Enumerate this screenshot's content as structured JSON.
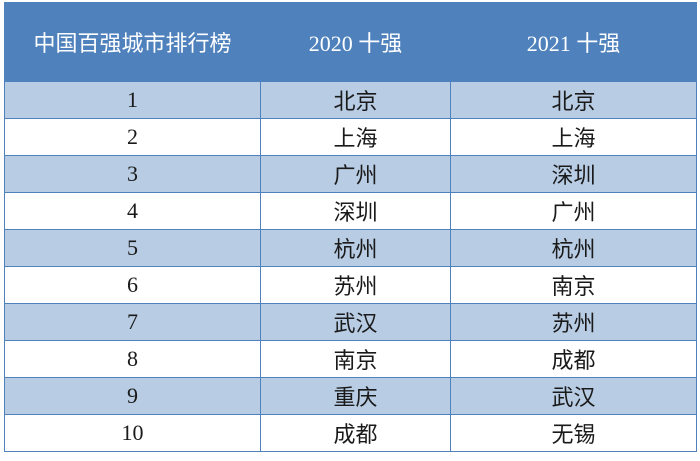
{
  "table": {
    "header": [
      "中国百强城市排行榜",
      "2020 十强",
      "2021 十强"
    ],
    "rows": [
      [
        1,
        "北京",
        "北京"
      ],
      [
        2,
        "上海",
        "上海"
      ],
      [
        3,
        "广州",
        "深圳"
      ],
      [
        4,
        "深圳",
        "广州"
      ],
      [
        5,
        "杭州",
        "杭州"
      ],
      [
        6,
        "苏州",
        "南京"
      ],
      [
        7,
        "武汉",
        "苏州"
      ],
      [
        8,
        "南京",
        "成都"
      ],
      [
        9,
        "重庆",
        "武汉"
      ],
      [
        10,
        "成都",
        "无锡"
      ]
    ]
  }
}
